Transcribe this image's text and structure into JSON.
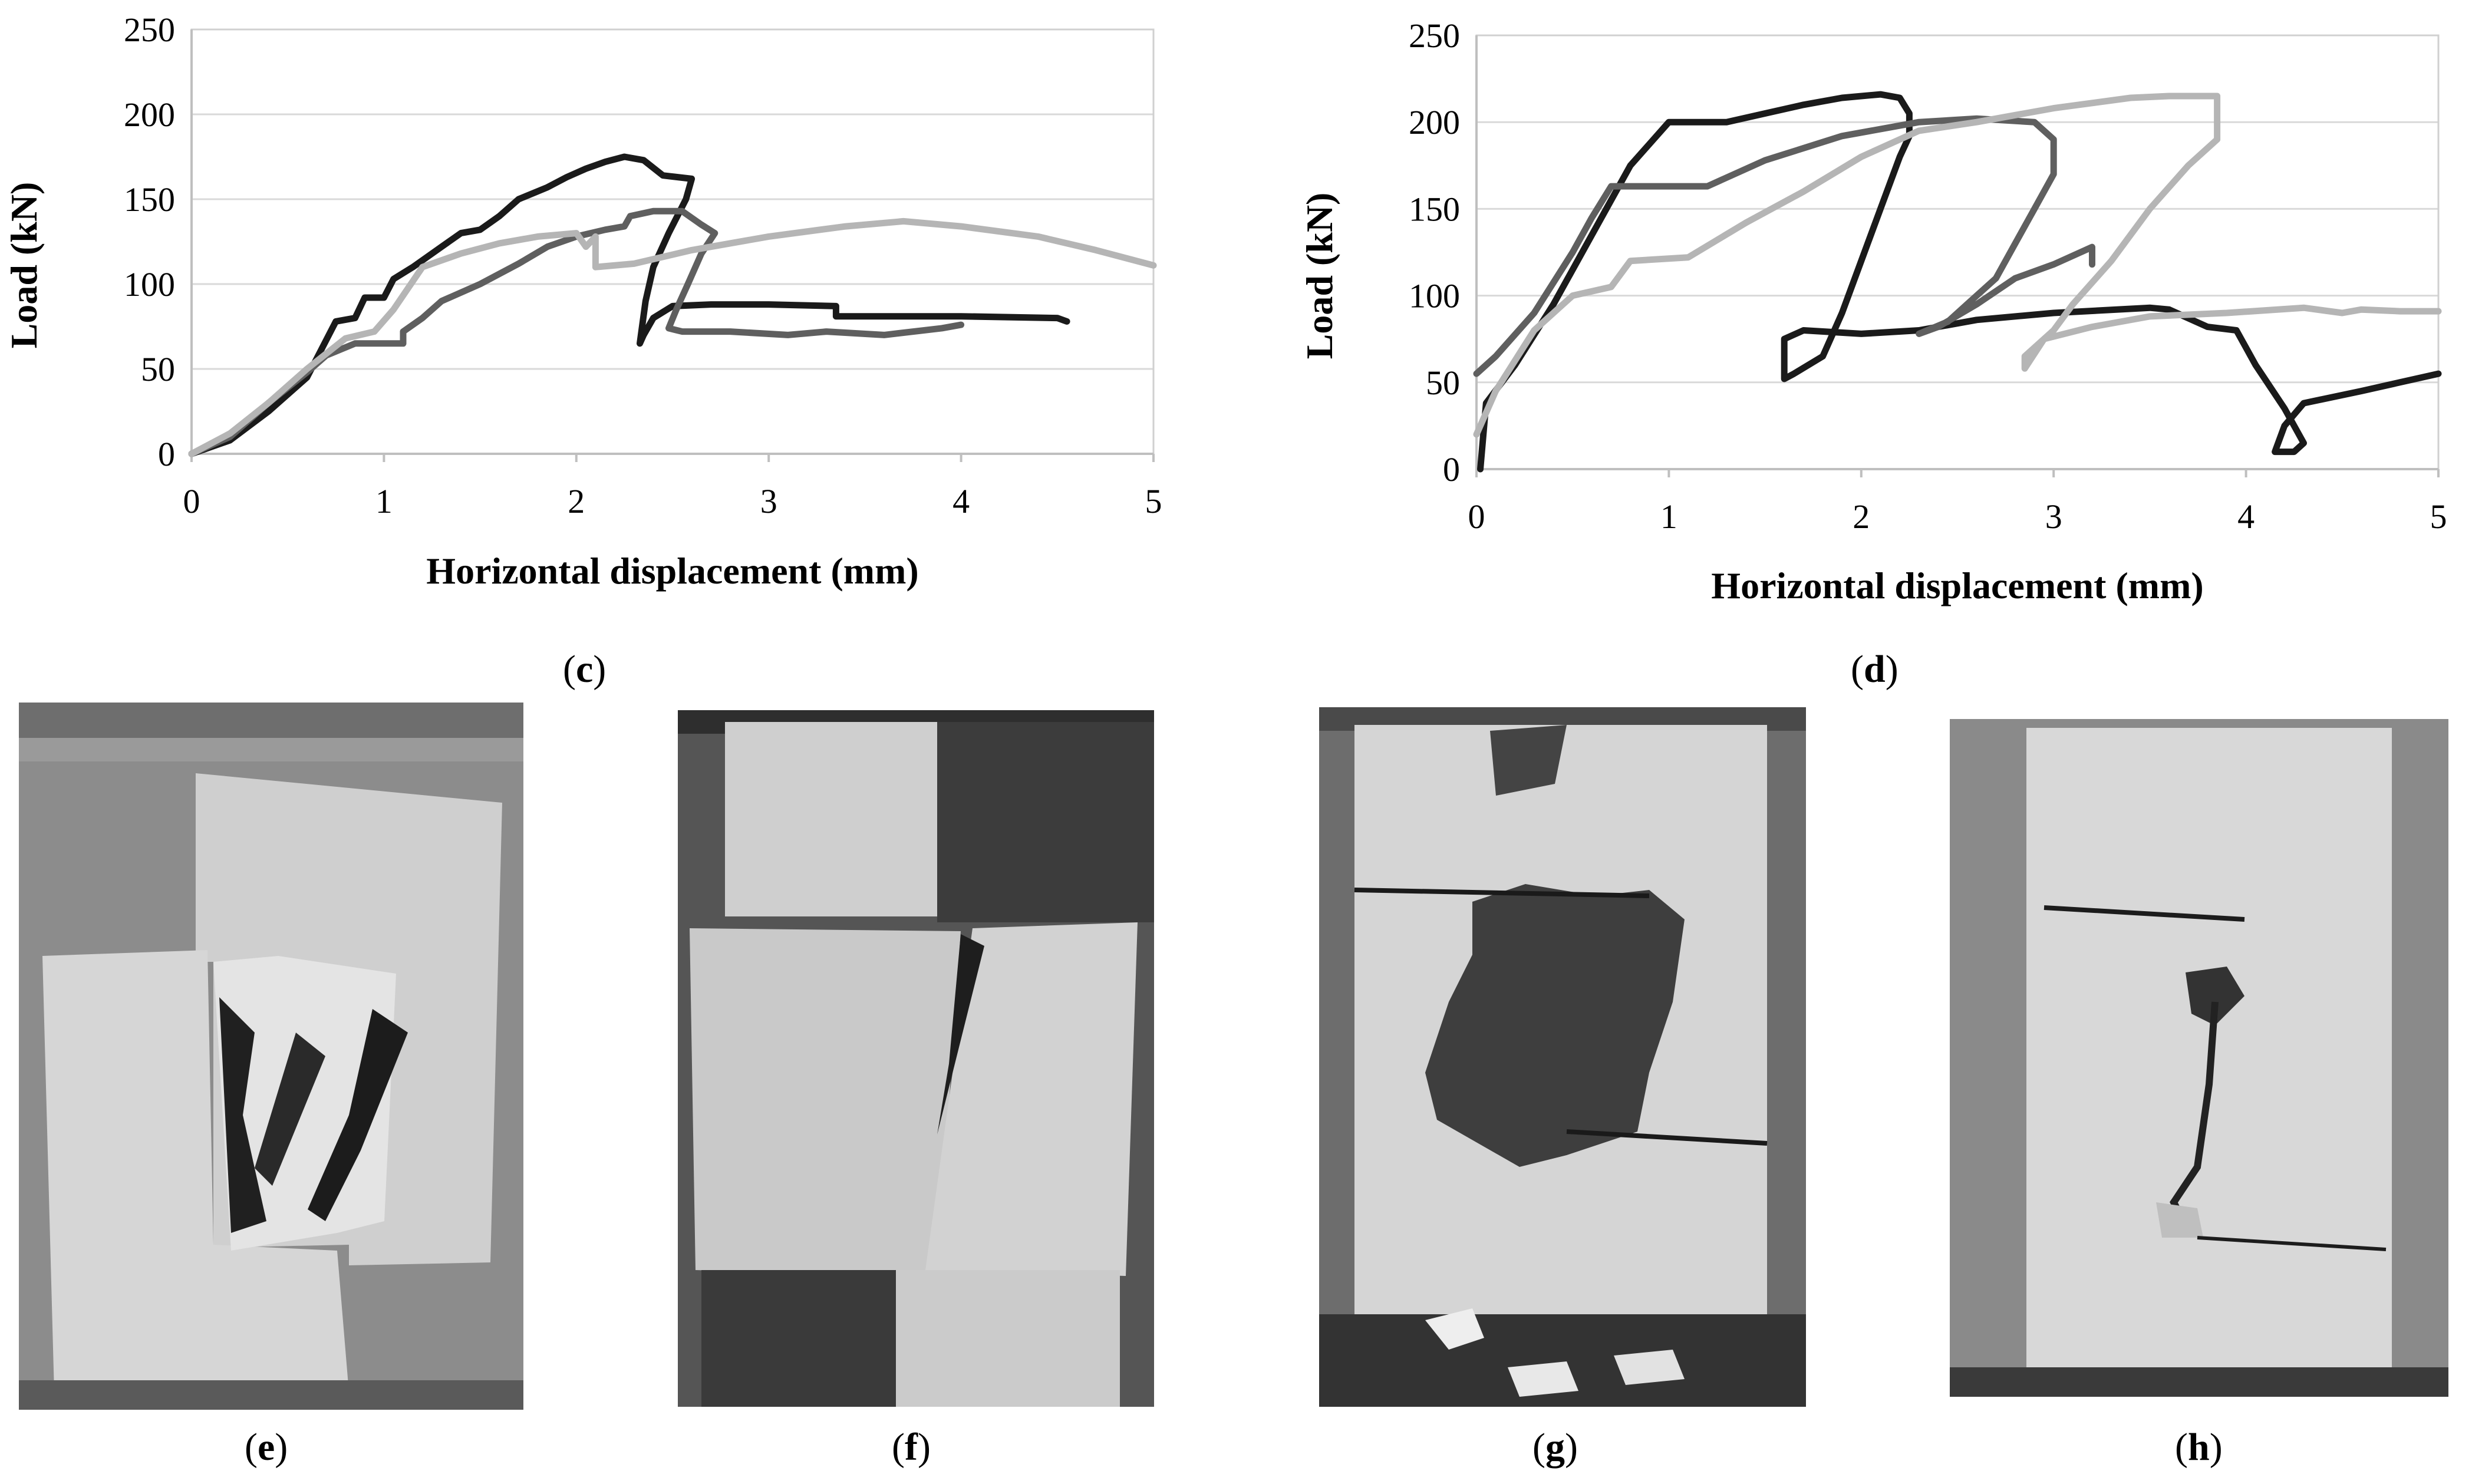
{
  "chart_data": [
    {
      "panel": "c",
      "type": "line",
      "xlabel": "Horizontal displacement (mm)",
      "ylabel": "Load (kN)",
      "xlim": [
        0,
        5
      ],
      "ylim": [
        0,
        250
      ],
      "xticks": [
        0,
        1,
        2,
        3,
        4,
        5
      ],
      "yticks": [
        0,
        50,
        100,
        150,
        200,
        250
      ],
      "grid": "horizontal",
      "series": [
        {
          "color": "#1a1a1a",
          "points": [
            [
              0,
              0
            ],
            [
              0.2,
              8
            ],
            [
              0.4,
              25
            ],
            [
              0.6,
              45
            ],
            [
              0.75,
              78
            ],
            [
              0.85,
              80
            ],
            [
              0.9,
              92
            ],
            [
              1.0,
              92
            ],
            [
              1.05,
              103
            ],
            [
              1.15,
              110
            ],
            [
              1.3,
              122
            ],
            [
              1.4,
              130
            ],
            [
              1.5,
              132
            ],
            [
              1.6,
              140
            ],
            [
              1.7,
              150
            ],
            [
              1.85,
              157
            ],
            [
              1.95,
              163
            ],
            [
              2.05,
              168
            ],
            [
              2.15,
              172
            ],
            [
              2.25,
              175
            ],
            [
              2.35,
              173
            ],
            [
              2.45,
              164
            ],
            [
              2.6,
              162
            ],
            [
              2.57,
              150
            ],
            [
              2.48,
              130
            ],
            [
              2.4,
              110
            ],
            [
              2.36,
              90
            ],
            [
              2.33,
              65
            ],
            [
              2.35,
              70
            ],
            [
              2.4,
              80
            ],
            [
              2.5,
              87
            ],
            [
              2.7,
              88
            ],
            [
              3.0,
              88
            ],
            [
              3.35,
              87
            ],
            [
              3.35,
              81
            ],
            [
              4.0,
              81
            ],
            [
              4.5,
              80
            ],
            [
              4.55,
              78
            ]
          ]
        },
        {
          "color": "#5f5f5f",
          "points": [
            [
              0,
              0
            ],
            [
              0.2,
              10
            ],
            [
              0.4,
              30
            ],
            [
              0.6,
              48
            ],
            [
              0.7,
              58
            ],
            [
              0.85,
              65
            ],
            [
              1.1,
              65
            ],
            [
              1.1,
              72
            ],
            [
              1.2,
              80
            ],
            [
              1.3,
              90
            ],
            [
              1.5,
              100
            ],
            [
              1.7,
              112
            ],
            [
              1.85,
              122
            ],
            [
              2.0,
              128
            ],
            [
              2.15,
              132
            ],
            [
              2.25,
              134
            ],
            [
              2.28,
              140
            ],
            [
              2.4,
              143
            ],
            [
              2.55,
              143
            ],
            [
              2.65,
              135
            ],
            [
              2.72,
              130
            ],
            [
              2.65,
              118
            ],
            [
              2.58,
              100
            ],
            [
              2.52,
              85
            ],
            [
              2.48,
              74
            ],
            [
              2.55,
              72
            ],
            [
              2.8,
              72
            ],
            [
              3.1,
              70
            ],
            [
              3.3,
              72
            ],
            [
              3.6,
              70
            ],
            [
              3.9,
              74
            ],
            [
              4.0,
              76
            ]
          ]
        },
        {
          "color": "#b5b5b5",
          "points": [
            [
              0,
              0
            ],
            [
              0.2,
              12
            ],
            [
              0.4,
              30
            ],
            [
              0.6,
              50
            ],
            [
              0.8,
              68
            ],
            [
              0.95,
              72
            ],
            [
              1.05,
              85
            ],
            [
              1.2,
              110
            ],
            [
              1.4,
              118
            ],
            [
              1.6,
              124
            ],
            [
              1.8,
              128
            ],
            [
              2.0,
              130
            ],
            [
              2.05,
              122
            ],
            [
              2.1,
              128
            ],
            [
              2.1,
              110
            ],
            [
              2.3,
              112
            ],
            [
              2.6,
              120
            ],
            [
              3.0,
              128
            ],
            [
              3.4,
              134
            ],
            [
              3.7,
              137
            ],
            [
              4.0,
              134
            ],
            [
              4.4,
              128
            ],
            [
              4.7,
              120
            ],
            [
              5.0,
              111
            ]
          ]
        }
      ]
    },
    {
      "panel": "d",
      "type": "line",
      "xlabel": "Horizontal displacement (mm)",
      "ylabel": "Load (kN)",
      "xlim": [
        0,
        5
      ],
      "ylim": [
        0,
        250
      ],
      "xticks": [
        0,
        1,
        2,
        3,
        4,
        5
      ],
      "yticks": [
        0,
        50,
        100,
        150,
        200,
        250
      ],
      "grid": "horizontal",
      "series": [
        {
          "color": "#1a1a1a",
          "points": [
            [
              0.02,
              0
            ],
            [
              0.05,
              38
            ],
            [
              0.2,
              60
            ],
            [
              0.4,
              95
            ],
            [
              0.6,
              135
            ],
            [
              0.8,
              175
            ],
            [
              1.0,
              200
            ],
            [
              1.1,
              200
            ],
            [
              1.3,
              200
            ],
            [
              1.5,
              205
            ],
            [
              1.7,
              210
            ],
            [
              1.9,
              214
            ],
            [
              2.1,
              216
            ],
            [
              2.2,
              214
            ],
            [
              2.25,
              205
            ],
            [
              2.25,
              192
            ],
            [
              2.2,
              180
            ],
            [
              2.1,
              150
            ],
            [
              2.0,
              120
            ],
            [
              1.9,
              90
            ],
            [
              1.8,
              65
            ],
            [
              1.65,
              55
            ],
            [
              1.6,
              52
            ],
            [
              1.6,
              75
            ],
            [
              1.7,
              80
            ],
            [
              2.0,
              78
            ],
            [
              2.3,
              80
            ],
            [
              2.6,
              86
            ],
            [
              3.0,
              90
            ],
            [
              3.5,
              93
            ],
            [
              3.6,
              92
            ],
            [
              3.8,
              82
            ],
            [
              3.95,
              80
            ],
            [
              4.05,
              60
            ],
            [
              4.2,
              35
            ],
            [
              4.3,
              15
            ],
            [
              4.25,
              10
            ],
            [
              4.15,
              10
            ],
            [
              4.2,
              25
            ],
            [
              4.3,
              38
            ],
            [
              4.6,
              45
            ],
            [
              4.8,
              50
            ],
            [
              5.0,
              55
            ]
          ]
        },
        {
          "color": "#5f5f5f",
          "points": [
            [
              0,
              55
            ],
            [
              0.1,
              65
            ],
            [
              0.3,
              90
            ],
            [
              0.5,
              125
            ],
            [
              0.6,
              145
            ],
            [
              0.7,
              163
            ],
            [
              1.0,
              163
            ],
            [
              1.2,
              163
            ],
            [
              1.5,
              178
            ],
            [
              1.9,
              192
            ],
            [
              2.3,
              200
            ],
            [
              2.6,
              202
            ],
            [
              2.9,
              200
            ],
            [
              3.0,
              190
            ],
            [
              3.0,
              180
            ],
            [
              3.0,
              170
            ],
            [
              2.9,
              150
            ],
            [
              2.8,
              130
            ],
            [
              2.7,
              110
            ],
            [
              2.55,
              95
            ],
            [
              2.45,
              85
            ],
            [
              2.3,
              78
            ],
            [
              2.4,
              82
            ],
            [
              2.6,
              95
            ],
            [
              2.8,
              110
            ],
            [
              3.0,
              118
            ],
            [
              3.2,
              128
            ],
            [
              3.2,
              118
            ]
          ]
        },
        {
          "color": "#b5b5b5",
          "points": [
            [
              0,
              20
            ],
            [
              0.1,
              45
            ],
            [
              0.3,
              80
            ],
            [
              0.5,
              100
            ],
            [
              0.7,
              105
            ],
            [
              0.8,
              120
            ],
            [
              1.1,
              122
            ],
            [
              1.4,
              142
            ],
            [
              1.7,
              160
            ],
            [
              2.0,
              180
            ],
            [
              2.3,
              195
            ],
            [
              2.6,
              200
            ],
            [
              3.0,
              208
            ],
            [
              3.4,
              214
            ],
            [
              3.6,
              215
            ],
            [
              3.85,
              215
            ],
            [
              3.85,
              190
            ],
            [
              3.7,
              175
            ],
            [
              3.5,
              150
            ],
            [
              3.3,
              120
            ],
            [
              3.1,
              95
            ],
            [
              3.0,
              80
            ],
            [
              2.85,
              65
            ],
            [
              2.85,
              58
            ],
            [
              2.95,
              75
            ],
            [
              3.2,
              82
            ],
            [
              3.5,
              88
            ],
            [
              3.9,
              90
            ],
            [
              4.3,
              93
            ],
            [
              4.5,
              90
            ],
            [
              4.6,
              92
            ],
            [
              4.8,
              91
            ],
            [
              5.0,
              91
            ]
          ]
        }
      ]
    }
  ],
  "labels": {
    "c": "c",
    "d": "d",
    "e": "e",
    "f": "f",
    "g": "g",
    "h": "h"
  }
}
